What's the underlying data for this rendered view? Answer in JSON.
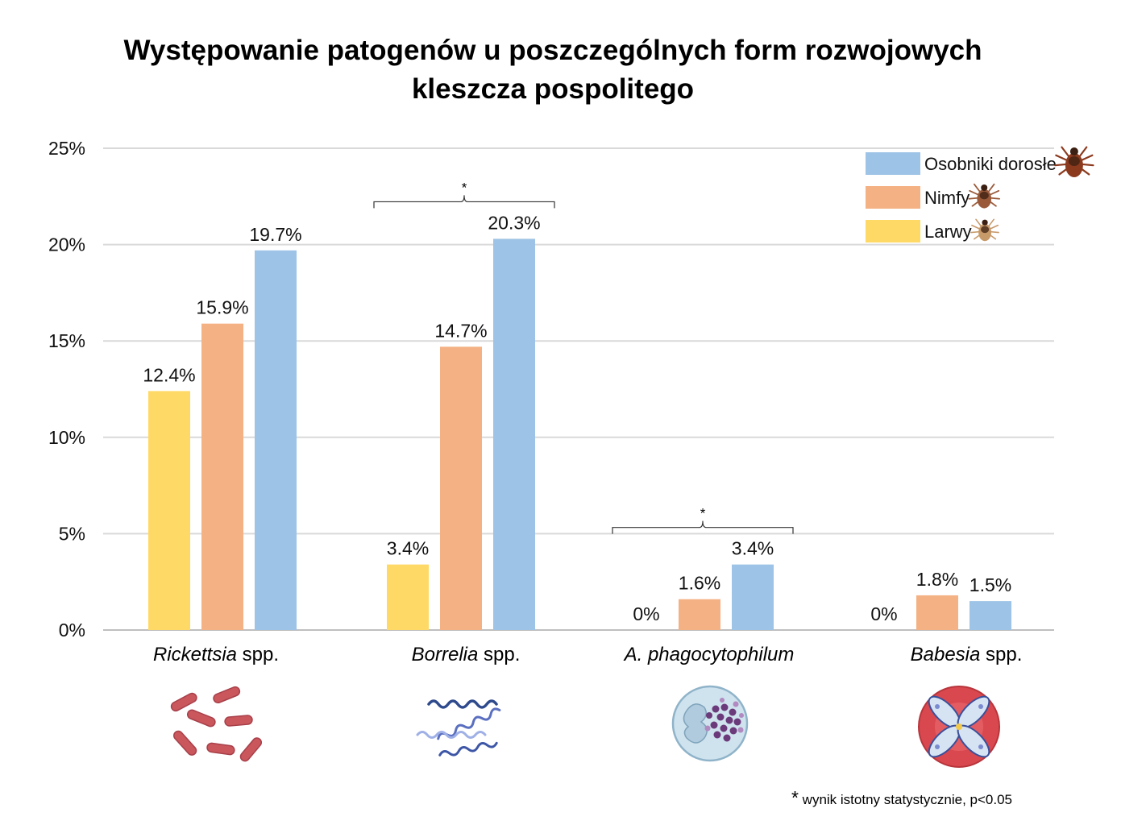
{
  "chart_data": {
    "type": "bar",
    "title_lines": [
      "Występowanie patogenów u poszczególnych form rozwojowych",
      "kleszcza pospolitego"
    ],
    "categories": [
      {
        "italic": "Rickettsia",
        "normal": " spp."
      },
      {
        "italic": "Borrelia",
        "normal": " spp."
      },
      {
        "italic": "A. phagocytophilum",
        "normal": ""
      },
      {
        "italic": "Babesia",
        "normal": " spp."
      }
    ],
    "series": [
      {
        "name": "Larwy",
        "color": "#FFD966",
        "values": [
          12.4,
          3.4,
          0,
          null
        ]
      },
      {
        "name": "Nimfy",
        "color": "#F4B183",
        "values": [
          15.9,
          14.7,
          1.6,
          1.8
        ]
      },
      {
        "name": "Osobniki dorosłe",
        "color": "#9DC3E6",
        "values": [
          19.7,
          20.3,
          3.4,
          1.5
        ]
      }
    ],
    "data_labels": [
      [
        "12.4%",
        "15.9%",
        "19.7%"
      ],
      [
        "3.4%",
        "14.7%",
        "20.3%"
      ],
      [
        "0%",
        "1.6%",
        "3.4%"
      ],
      [
        "0%",
        "1.8%",
        "1.5%"
      ]
    ],
    "ylim": [
      0,
      25
    ],
    "yticks": [
      0,
      5,
      10,
      15,
      20,
      25
    ],
    "ytick_labels": [
      "0%",
      "5%",
      "10%",
      "15%",
      "20%",
      "25%"
    ],
    "grid": true,
    "legend_position": "top-right",
    "legend_order": [
      "Osobniki dorosłe",
      "Nimfy",
      "Larwy"
    ],
    "significance": [
      {
        "category_index": 1,
        "marker": "*"
      },
      {
        "category_index": 2,
        "marker": "*"
      }
    ],
    "footnote": {
      "marker": "*",
      "text": " wynik istotny statystycznie, p<0.05"
    },
    "icons": [
      "rickettsia-bacteria-icon",
      "borrelia-spirochete-icon",
      "anaplasma-cell-icon",
      "babesia-erythrocyte-icon"
    ],
    "legend_icons": [
      "adult-tick-icon",
      "nymph-tick-icon",
      "larva-tick-icon"
    ]
  }
}
